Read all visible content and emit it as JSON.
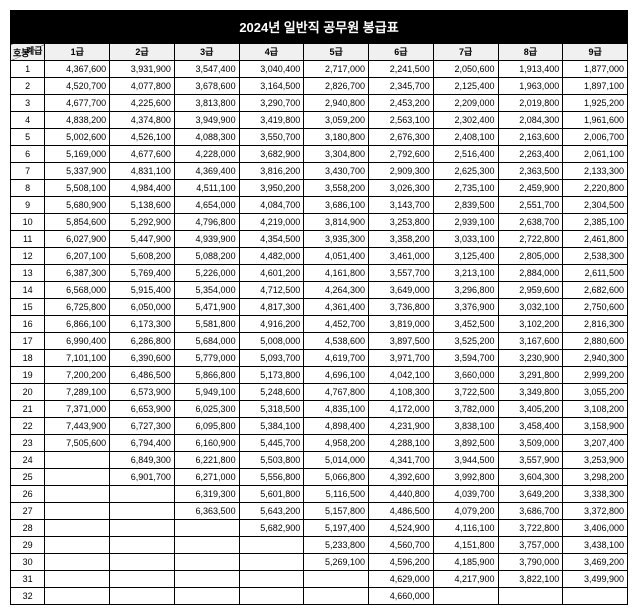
{
  "title": "2024년 일반직 공무원 봉급표",
  "corner": {
    "top": "계급",
    "bottom": "호봉"
  },
  "headers": [
    "1급",
    "2급",
    "3급",
    "4급",
    "5급",
    "6급",
    "7급",
    "8급",
    "9급"
  ],
  "rows": [
    {
      "n": "1",
      "v": [
        "4,367,600",
        "3,931,900",
        "3,547,400",
        "3,040,400",
        "2,717,000",
        "2,241,500",
        "2,050,600",
        "1,913,400",
        "1,877,000"
      ]
    },
    {
      "n": "2",
      "v": [
        "4,520,700",
        "4,077,800",
        "3,678,600",
        "3,164,500",
        "2,826,700",
        "2,345,700",
        "2,125,400",
        "1,963,000",
        "1,897,100"
      ]
    },
    {
      "n": "3",
      "v": [
        "4,677,700",
        "4,225,600",
        "3,813,800",
        "3,290,700",
        "2,940,800",
        "2,453,200",
        "2,209,000",
        "2,019,800",
        "1,925,200"
      ]
    },
    {
      "n": "4",
      "v": [
        "4,838,200",
        "4,374,800",
        "3,949,900",
        "3,419,800",
        "3,059,200",
        "2,563,100",
        "2,302,400",
        "2,084,300",
        "1,961,600"
      ]
    },
    {
      "n": "5",
      "v": [
        "5,002,600",
        "4,526,100",
        "4,088,300",
        "3,550,700",
        "3,180,800",
        "2,676,300",
        "2,408,100",
        "2,163,600",
        "2,006,700"
      ]
    },
    {
      "n": "6",
      "v": [
        "5,169,000",
        "4,677,600",
        "4,228,000",
        "3,682,900",
        "3,304,800",
        "2,792,600",
        "2,516,400",
        "2,263,400",
        "2,061,100"
      ]
    },
    {
      "n": "7",
      "v": [
        "5,337,900",
        "4,831,100",
        "4,369,400",
        "3,816,200",
        "3,430,700",
        "2,909,300",
        "2,625,300",
        "2,363,500",
        "2,133,300"
      ]
    },
    {
      "n": "8",
      "v": [
        "5,508,100",
        "4,984,400",
        "4,511,100",
        "3,950,200",
        "3,558,200",
        "3,026,300",
        "2,735,100",
        "2,459,900",
        "2,220,800"
      ]
    },
    {
      "n": "9",
      "v": [
        "5,680,900",
        "5,138,600",
        "4,654,000",
        "4,084,700",
        "3,686,100",
        "3,143,700",
        "2,839,500",
        "2,551,700",
        "2,304,500"
      ]
    },
    {
      "n": "10",
      "v": [
        "5,854,600",
        "5,292,900",
        "4,796,800",
        "4,219,000",
        "3,814,900",
        "3,253,800",
        "2,939,100",
        "2,638,700",
        "2,385,100"
      ]
    },
    {
      "n": "11",
      "v": [
        "6,027,900",
        "5,447,900",
        "4,939,900",
        "4,354,500",
        "3,935,300",
        "3,358,200",
        "3,033,100",
        "2,722,800",
        "2,461,800"
      ]
    },
    {
      "n": "12",
      "v": [
        "6,207,100",
        "5,608,200",
        "5,088,200",
        "4,482,000",
        "4,051,400",
        "3,461,000",
        "3,125,400",
        "2,805,000",
        "2,538,300"
      ]
    },
    {
      "n": "13",
      "v": [
        "6,387,300",
        "5,769,400",
        "5,226,000",
        "4,601,200",
        "4,161,800",
        "3,557,700",
        "3,213,100",
        "2,884,000",
        "2,611,500"
      ]
    },
    {
      "n": "14",
      "v": [
        "6,568,000",
        "5,915,400",
        "5,354,000",
        "4,712,500",
        "4,264,300",
        "3,649,000",
        "3,296,800",
        "2,959,600",
        "2,682,600"
      ]
    },
    {
      "n": "15",
      "v": [
        "6,725,800",
        "6,050,000",
        "5,471,900",
        "4,817,300",
        "4,361,400",
        "3,736,800",
        "3,376,900",
        "3,032,100",
        "2,750,600"
      ]
    },
    {
      "n": "16",
      "v": [
        "6,866,100",
        "6,173,300",
        "5,581,800",
        "4,916,200",
        "4,452,700",
        "3,819,000",
        "3,452,500",
        "3,102,200",
        "2,816,300"
      ]
    },
    {
      "n": "17",
      "v": [
        "6,990,400",
        "6,286,800",
        "5,684,000",
        "5,008,000",
        "4,538,600",
        "3,897,500",
        "3,525,200",
        "3,167,600",
        "2,880,600"
      ]
    },
    {
      "n": "18",
      "v": [
        "7,101,100",
        "6,390,600",
        "5,779,000",
        "5,093,700",
        "4,619,700",
        "3,971,700",
        "3,594,700",
        "3,230,900",
        "2,940,300"
      ]
    },
    {
      "n": "19",
      "v": [
        "7,200,200",
        "6,486,500",
        "5,866,800",
        "5,173,800",
        "4,696,100",
        "4,042,100",
        "3,660,000",
        "3,291,800",
        "2,999,200"
      ]
    },
    {
      "n": "20",
      "v": [
        "7,289,100",
        "6,573,900",
        "5,949,100",
        "5,248,600",
        "4,767,800",
        "4,108,300",
        "3,722,500",
        "3,349,800",
        "3,055,200"
      ]
    },
    {
      "n": "21",
      "v": [
        "7,371,000",
        "6,653,900",
        "6,025,300",
        "5,318,500",
        "4,835,100",
        "4,172,000",
        "3,782,000",
        "3,405,200",
        "3,108,200"
      ]
    },
    {
      "n": "22",
      "v": [
        "7,443,900",
        "6,727,300",
        "6,095,800",
        "5,384,100",
        "4,898,400",
        "4,231,900",
        "3,838,100",
        "3,458,400",
        "3,158,900"
      ]
    },
    {
      "n": "23",
      "v": [
        "7,505,600",
        "6,794,400",
        "6,160,900",
        "5,445,700",
        "4,958,200",
        "4,288,100",
        "3,892,500",
        "3,509,000",
        "3,207,400"
      ]
    },
    {
      "n": "24",
      "v": [
        "",
        "6,849,300",
        "6,221,800",
        "5,503,800",
        "5,014,000",
        "4,341,700",
        "3,944,500",
        "3,557,900",
        "3,253,900"
      ]
    },
    {
      "n": "25",
      "v": [
        "",
        "6,901,700",
        "6,271,000",
        "5,556,800",
        "5,066,800",
        "4,392,600",
        "3,992,800",
        "3,604,300",
        "3,298,200"
      ]
    },
    {
      "n": "26",
      "v": [
        "",
        "",
        "6,319,300",
        "5,601,800",
        "5,116,500",
        "4,440,800",
        "4,039,700",
        "3,649,200",
        "3,338,300"
      ]
    },
    {
      "n": "27",
      "v": [
        "",
        "",
        "6,363,500",
        "5,643,200",
        "5,157,800",
        "4,486,500",
        "4,079,200",
        "3,686,700",
        "3,372,800"
      ]
    },
    {
      "n": "28",
      "v": [
        "",
        "",
        "",
        "5,682,900",
        "5,197,400",
        "4,524,900",
        "4,116,100",
        "3,722,800",
        "3,406,000"
      ]
    },
    {
      "n": "29",
      "v": [
        "",
        "",
        "",
        "",
        "5,233,800",
        "4,560,700",
        "4,151,800",
        "3,757,000",
        "3,438,100"
      ]
    },
    {
      "n": "30",
      "v": [
        "",
        "",
        "",
        "",
        "5,269,100",
        "4,596,200",
        "4,185,900",
        "3,790,000",
        "3,469,200"
      ]
    },
    {
      "n": "31",
      "v": [
        "",
        "",
        "",
        "",
        "",
        "4,629,000",
        "4,217,900",
        "3,822,100",
        "3,499,900"
      ]
    },
    {
      "n": "32",
      "v": [
        "",
        "",
        "",
        "",
        "",
        "4,660,000",
        "",
        "",
        ""
      ]
    }
  ]
}
